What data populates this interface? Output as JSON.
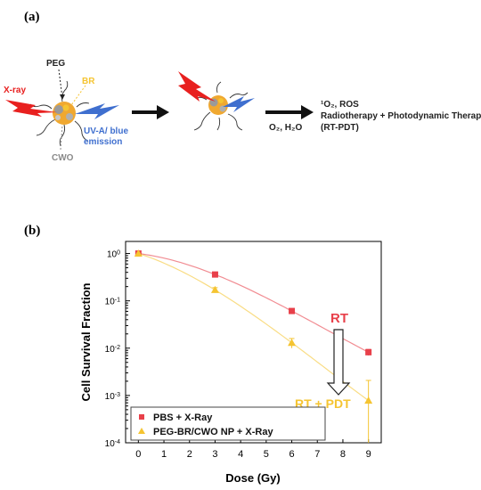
{
  "panel_a": {
    "label": "(a)",
    "labels": {
      "peg": "PEG",
      "br": "BR",
      "xray": "X-ray",
      "uv_line1": "UV-A/ blue",
      "uv_line2": "emission",
      "cwo": "CWO",
      "conditions": "O₂, H₂O",
      "product_line1": "¹O₂, ROS",
      "product_line2": "Radiotherapy + Photodynamic Therapy",
      "product_line3": "(RT-PDT)"
    },
    "colors": {
      "xray": "#e8201f",
      "br": "#f5c431",
      "uv": "#3f6fcf",
      "cwo": "#8a8a8a",
      "peg": "#333333"
    }
  },
  "panel_b": {
    "label": "(b)"
  },
  "chart_data": {
    "type": "line",
    "xlabel": "Dose (Gy)",
    "ylabel": "Cell Survival Fraction",
    "xlim": [
      -0.5,
      9.5
    ],
    "ylim": [
      0.0001,
      1.8
    ],
    "yscale": "log",
    "xticks": [
      "0",
      "1",
      "2",
      "3",
      "4",
      "5",
      "6",
      "7",
      "8",
      "9"
    ],
    "yticks": [
      {
        "v": 1,
        "exp": "0"
      },
      {
        "v": 0.1,
        "exp": "-1"
      },
      {
        "v": 0.01,
        "exp": "-2"
      },
      {
        "v": 0.001,
        "exp": "-3"
      },
      {
        "v": 0.0001,
        "exp": "-4"
      }
    ],
    "tick_base": "10",
    "legend_position": "bottom-left",
    "series": [
      {
        "name": "PBS + X-Ray",
        "marker": "square",
        "color": "#e8404a",
        "x": [
          0,
          3,
          6,
          9
        ],
        "y": [
          1.0,
          0.36,
          0.061,
          0.0082
        ],
        "err": [
          0,
          0.03,
          0.006,
          0.0012
        ]
      },
      {
        "name": "PEG-BR/CWO NP + X-Ray",
        "marker": "triangle",
        "color": "#f5c431",
        "x": [
          0,
          3,
          6,
          9
        ],
        "y": [
          1.0,
          0.17,
          0.013,
          0.00078
        ],
        "err": [
          0,
          0.02,
          0.003,
          0.0013
        ]
      }
    ],
    "annotations": {
      "rt": "RT",
      "rt_pdt": "RT + PDT",
      "rt_color": "#e8404a",
      "rt_pdt_color": "#f5c431"
    }
  }
}
